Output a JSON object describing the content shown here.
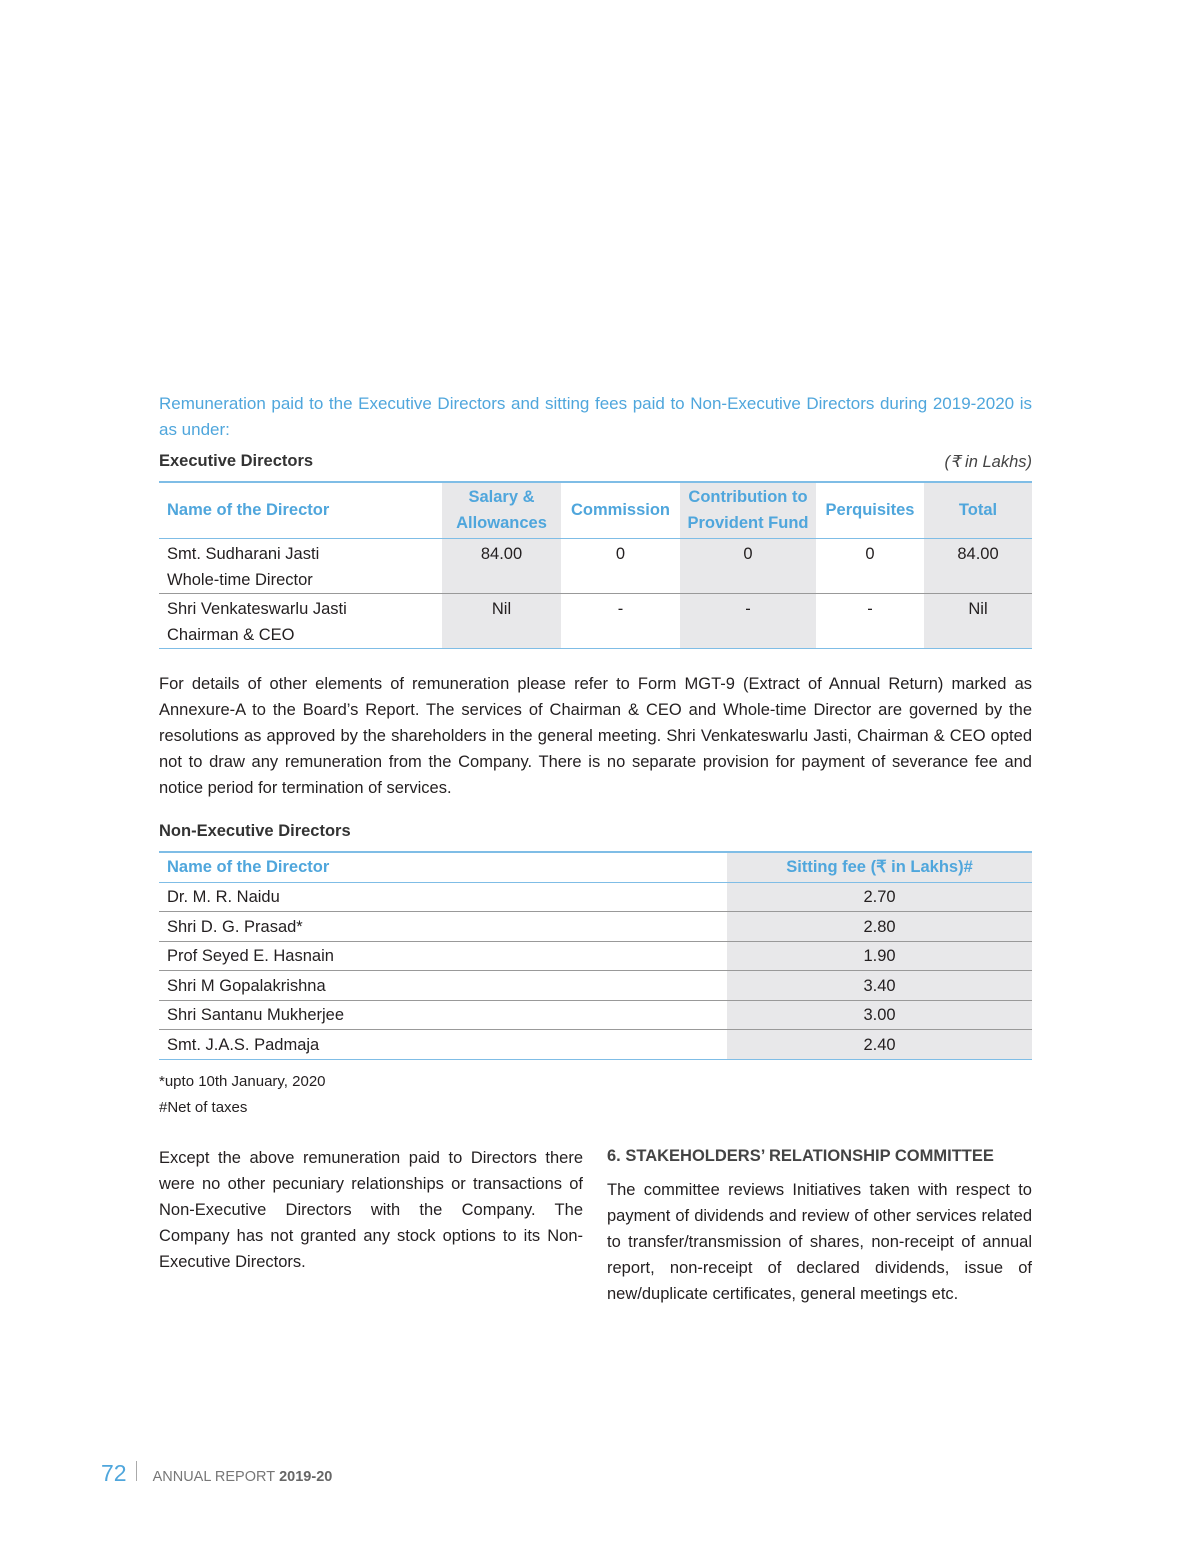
{
  "intro": "Remuneration paid to the Executive Directors and sitting fees paid to Non-Executive Directors during 2019-2020 is as under:",
  "exec": {
    "title": "Executive Directors",
    "unit": "(₹ in Lakhs)",
    "headers": [
      "Name of the Director",
      "Salary & Allowances",
      "Commission",
      "Contribution to Provident Fund",
      "Perquisites",
      "Total"
    ],
    "rows": [
      {
        "name": "Smt. Sudharani Jasti",
        "role": "Whole-time Director",
        "cells": [
          "84.00",
          "0",
          "0",
          "0",
          "84.00"
        ]
      },
      {
        "name": "Shri Venkateswarlu Jasti",
        "role": "Chairman & CEO",
        "cells": [
          "Nil",
          "-",
          "-",
          "-",
          "Nil"
        ]
      }
    ]
  },
  "para": "For details of other elements of remuneration please refer to Form MGT-9 (Extract of Annual Return) marked as Annexure-A to the Board’s Report. The services of Chairman & CEO and Whole-time Director are governed by the resolutions as approved by the shareholders in the general meeting. Shri Venkateswarlu Jasti, Chairman & CEO opted not to draw any remuneration from the Company. There is no separate provision for payment of severance fee and notice period for termination of services.",
  "nonexec": {
    "title": "Non-Executive Directors",
    "headers": [
      "Name of the Director",
      "Sitting fee (₹ in Lakhs)#"
    ],
    "rows": [
      [
        "Dr. M. R. Naidu",
        "2.70"
      ],
      [
        "Shri D. G. Prasad*",
        "2.80"
      ],
      [
        "Prof Seyed E. Hasnain",
        "1.90"
      ],
      [
        "Shri M Gopalakrishna",
        "3.40"
      ],
      [
        "Shri Santanu Mukherjee",
        "3.00"
      ],
      [
        "Smt. J.A.S. Padmaja",
        "2.40"
      ]
    ]
  },
  "notes": [
    "*upto 10th January, 2020",
    "#Net of taxes"
  ],
  "left_col": "Except the above remuneration paid to Directors there were no other pecuniary relationships or transactions of Non-Executive Directors with the Company. The Company has not granted any stock options to its Non-Executive Directors.",
  "section": {
    "heading": "6. STAKEHOLDERS’ RELATIONSHIP COMMITTEE",
    "text": "The committee reviews Initiatives taken with respect to payment of dividends and review of other services related to transfer/transmission of shares, non-receipt of annual report, non-receipt of declared dividends, issue of new/duplicate certificates, general meetings etc."
  },
  "footer": {
    "page": "72",
    "label": "ANNUAL REPORT",
    "year": "2019-20"
  },
  "colors": {
    "accent": "#4fa6dc",
    "shade": "#e8e8ea"
  }
}
